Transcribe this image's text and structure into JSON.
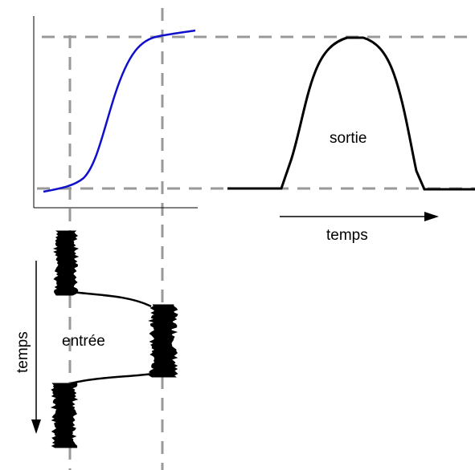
{
  "labels": {
    "output": "sortie",
    "time_horizontal": "temps",
    "input": "entrée",
    "time_vertical": "temps"
  },
  "colors": {
    "transfer_curve": "#1010cc",
    "signal": "#000000",
    "guide_lines": "#999999",
    "axes": "#000000"
  }
}
